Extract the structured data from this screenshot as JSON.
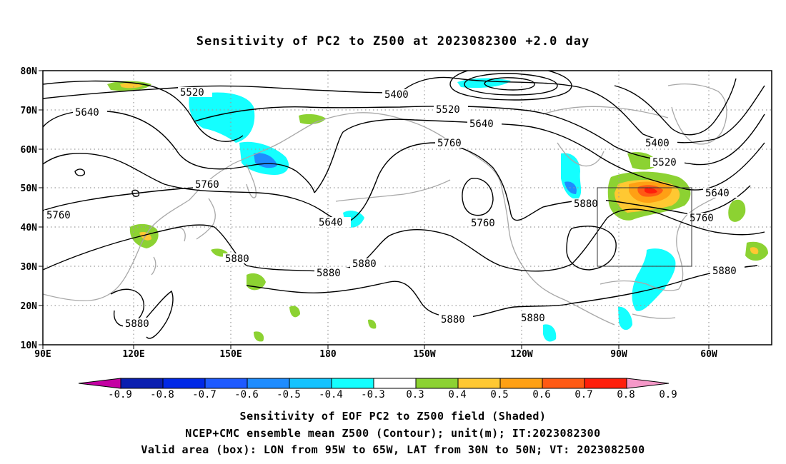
{
  "title": "Sensitivity of PC2 to Z500 at 2023082300 +2.0 day",
  "map": {
    "lat_ticks": [
      "80N",
      "70N",
      "60N",
      "50N",
      "40N",
      "30N",
      "20N",
      "10N"
    ],
    "lon_ticks": [
      "90E",
      "120E",
      "150E",
      "180",
      "150W",
      "120W",
      "90W",
      "60W"
    ],
    "contour_labels": [
      "5520",
      "5640",
      "5760",
      "5760",
      "5400",
      "5520",
      "5640",
      "5760",
      "5640",
      "5760",
      "5880",
      "5880",
      "5880",
      "5400",
      "5520",
      "5640",
      "5760",
      "5880",
      "5880",
      "5880",
      "5880"
    ],
    "colors": {
      "coast": "#a8a8a8",
      "grid": "#9a9a9a",
      "contour": "#000000"
    }
  },
  "colorbar": {
    "labels": [
      "-0.9",
      "-0.8",
      "-0.7",
      "-0.6",
      "-0.5",
      "-0.4",
      "-0.3",
      "0.3",
      "0.4",
      "0.5",
      "0.6",
      "0.7",
      "0.8",
      "0.9"
    ],
    "colors": [
      "#c400a3",
      "#0a1eb0",
      "#0028e6",
      "#1e5aff",
      "#1e8cff",
      "#14c3ff",
      "#14ffff",
      "#ffffff",
      "#8cd232",
      "#ffc832",
      "#ffa014",
      "#ff5a14",
      "#ff1e0a",
      "#f598c8"
    ]
  },
  "captions": {
    "line1": "Sensitivity of EOF PC2 to Z500 field (Shaded)",
    "line2": "NCEP+CMC ensemble mean Z500 (Contour); unit(m); IT:2023082300",
    "line3": "Valid area (box): LON from 95W to 65W, LAT from 30N to 50N; VT: 2023082500"
  }
}
